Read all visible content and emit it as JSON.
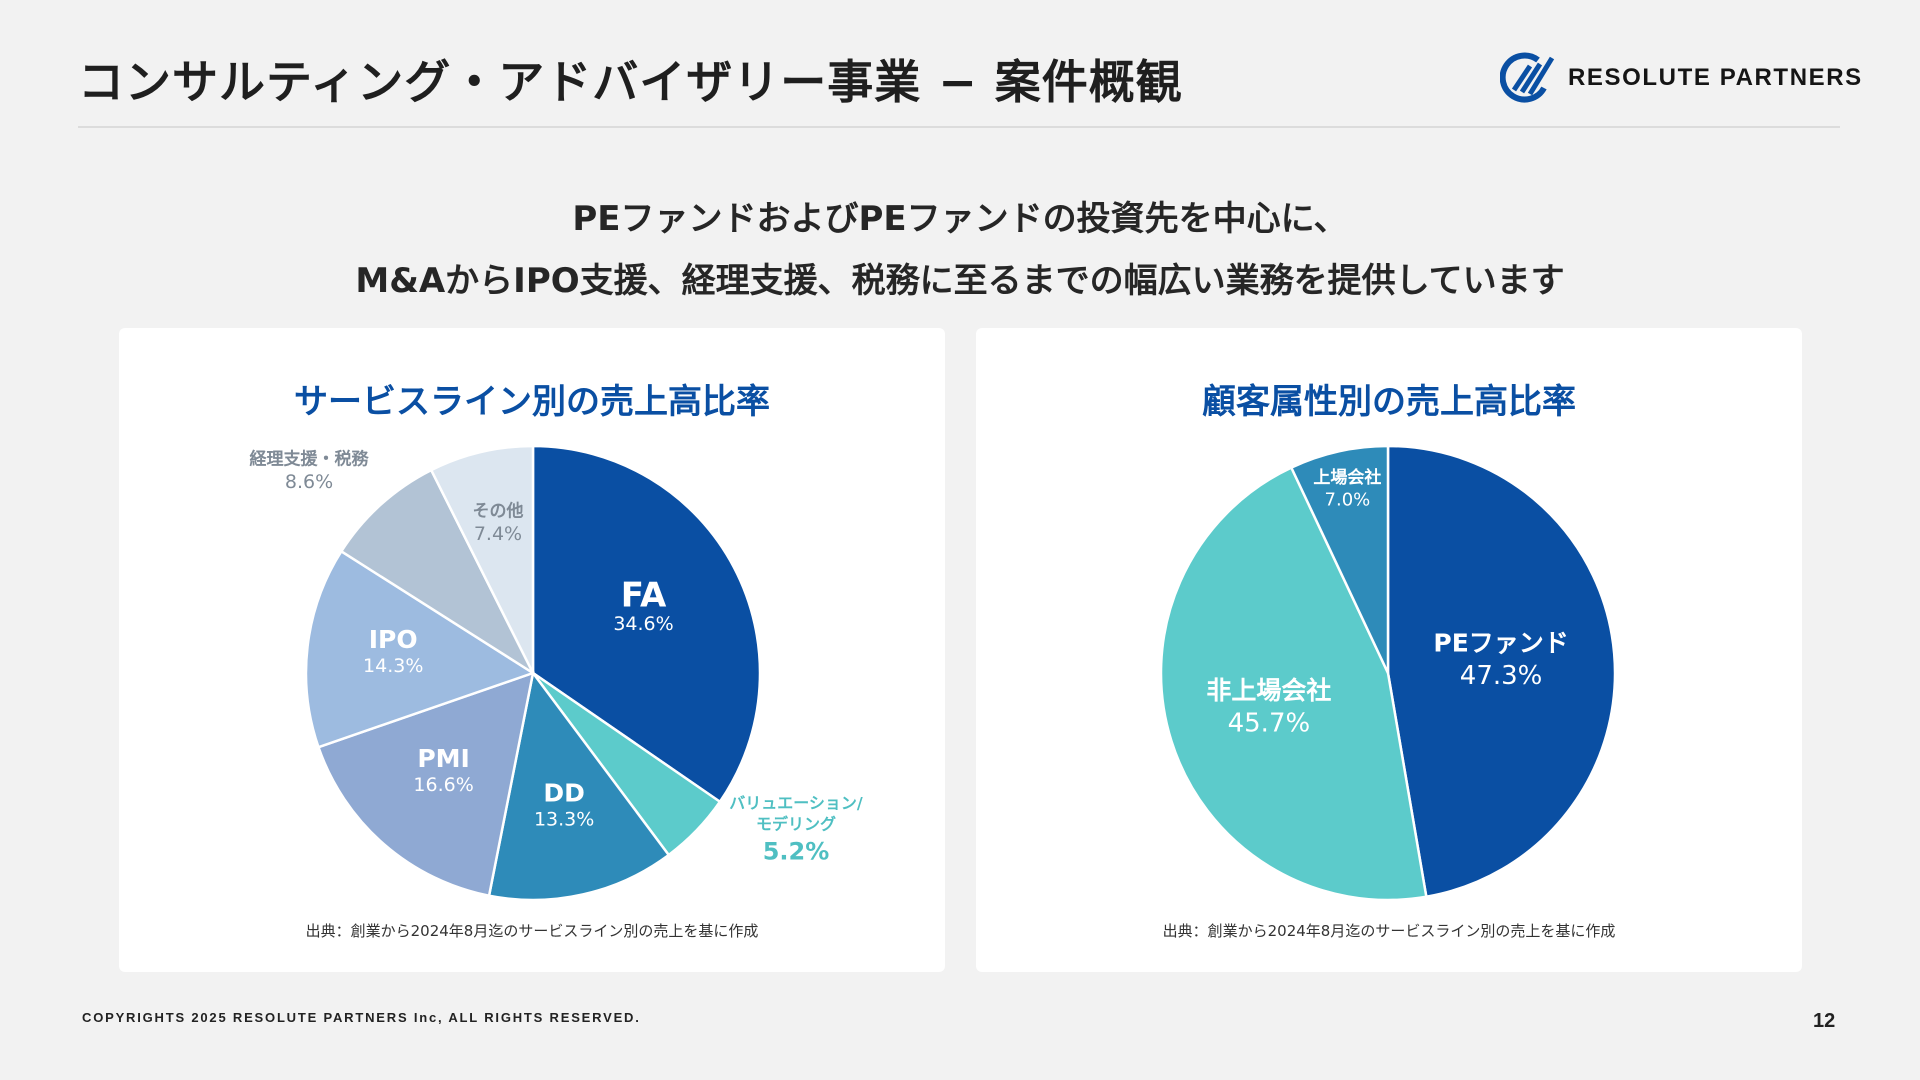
{
  "header": {
    "title": "コンサルティング・アドバイザリー事業 − 案件概観",
    "logo_text": "RESOLUTE PARTNERS"
  },
  "subtitle": {
    "line1": "PEファンドおよびPEファンドの投資先を中心に、",
    "line2": "M&AからIPO支援、経理支援、税務に至るまでの幅広い業務を提供しています"
  },
  "colors": {
    "brand_blue": "#0a4fa3",
    "background": "#f2f2f2",
    "card": "#ffffff"
  },
  "chart_data": [
    {
      "type": "pie",
      "title": "サービスライン別の売上高比率",
      "source": "出典：創業から2024年8月迄のサービスライン別の売上を基に作成",
      "start": "12 o'clock",
      "direction": "clockwise",
      "slices": [
        {
          "label": "FA",
          "value": 34.6,
          "value_text": "34.6%",
          "color": "#0a4fa3",
          "label_color": "#ffffff",
          "label_position": "inside"
        },
        {
          "label": "バリュエーション/モデリング",
          "label_lines": [
            "バリュエーション/",
            "モデリング"
          ],
          "value": 5.2,
          "value_text": "5.2%",
          "color": "#5ccbcb",
          "label_color": "#4fbfc2",
          "label_position": "outside"
        },
        {
          "label": "DD",
          "value": 13.3,
          "value_text": "13.3%",
          "color": "#2e8bb9",
          "label_color": "#ffffff",
          "label_position": "inside"
        },
        {
          "label": "PMI",
          "value": 16.6,
          "value_text": "16.6%",
          "color": "#8fa9d3",
          "label_color": "#ffffff",
          "label_position": "inside"
        },
        {
          "label": "IPO",
          "value": 14.3,
          "value_text": "14.3%",
          "color": "#9dbbe0",
          "label_color": "#ffffff",
          "label_position": "inside"
        },
        {
          "label": "経理支援・税務",
          "value": 8.6,
          "value_text": "8.6%",
          "color": "#b2c3d5",
          "label_color": "#7f8a96",
          "label_position": "outside"
        },
        {
          "label": "その他",
          "value": 7.4,
          "value_text": "7.4%",
          "color": "#dce6f0",
          "label_color": "#7f8a96",
          "label_position": "inside"
        }
      ]
    },
    {
      "type": "pie",
      "title": "顧客属性別の売上高比率",
      "source": "出典：創業から2024年8月迄のサービスライン別の売上を基に作成",
      "start": "12 o'clock",
      "direction": "clockwise",
      "slices": [
        {
          "label": "PEファンド",
          "value": 47.3,
          "value_text": "47.3%",
          "color": "#0a4fa3",
          "label_color": "#ffffff",
          "label_position": "inside"
        },
        {
          "label": "非上場会社",
          "value": 45.7,
          "value_text": "45.7%",
          "color": "#5ccbcb",
          "label_color": "#ffffff",
          "label_position": "inside"
        },
        {
          "label": "上場会社",
          "value": 7.0,
          "value_text": "7.0%",
          "color": "#2e8bb9",
          "label_color": "#ffffff",
          "label_position": "inside"
        }
      ]
    }
  ],
  "footer": {
    "copyright": "COPYRIGHTS 2025 RESOLUTE PARTNERS Inc, ALL RIGHTS RESERVED.",
    "page_number": "12"
  }
}
